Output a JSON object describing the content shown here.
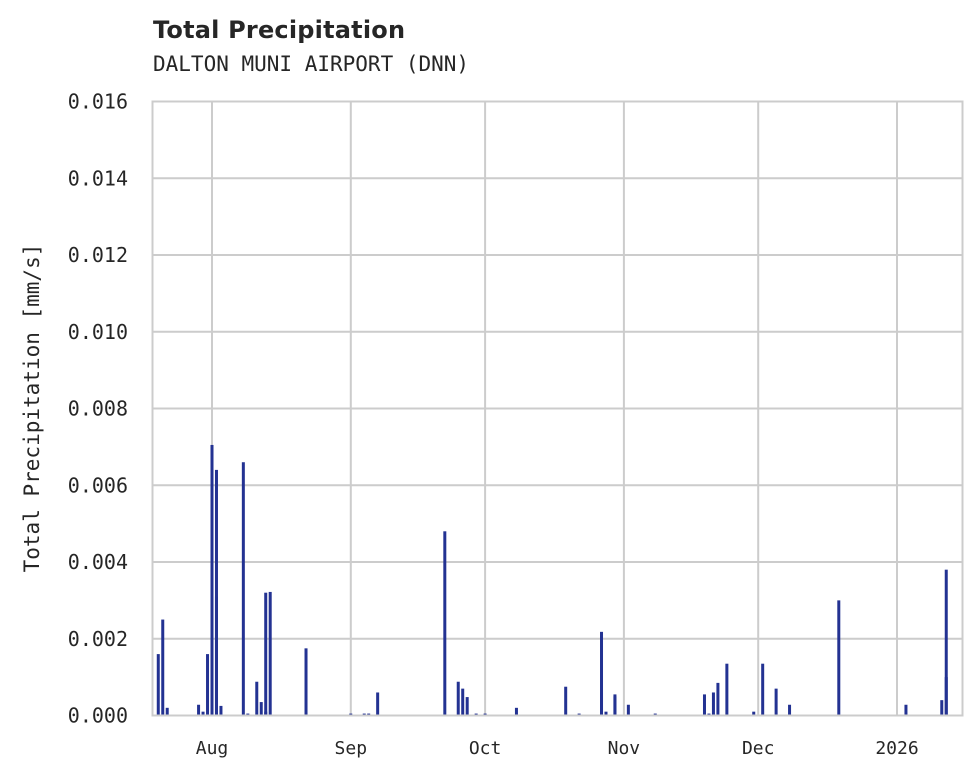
{
  "title": "Total Precipitation",
  "subtitle": "DALTON MUNI AIRPORT (DNN)",
  "colors": {
    "bar": "#233292",
    "grid": "#cccccc",
    "frame": "#cccccc",
    "text": "#262626"
  },
  "chart_data": {
    "type": "bar",
    "title": "Total Precipitation",
    "subtitle": "DALTON MUNI AIRPORT (DNN)",
    "xlabel": "",
    "ylabel": "Total Precipitation [mm/s]",
    "ylim": [
      0,
      0.016
    ],
    "yticks": [
      "0.000",
      "0.002",
      "0.004",
      "0.006",
      "0.008",
      "0.010",
      "0.012",
      "0.014",
      "0.016"
    ],
    "xticks": [
      "Aug",
      "Sep",
      "Oct",
      "Nov",
      "Dec",
      "2026"
    ],
    "xlim": [
      "2025-07-18",
      "2026-01-14"
    ],
    "grid": true,
    "legend": null,
    "series": [
      {
        "name": "Total Precipitation",
        "points": [
          {
            "x": "2025-07-20",
            "y": 0.0016
          },
          {
            "x": "2025-07-21",
            "y": 0.0025
          },
          {
            "x": "2025-07-22",
            "y": 0.0002
          },
          {
            "x": "2025-07-29",
            "y": 0.00028
          },
          {
            "x": "2025-07-30",
            "y": 0.0001
          },
          {
            "x": "2025-07-31",
            "y": 0.0016
          },
          {
            "x": "2025-08-01",
            "y": 0.00705
          },
          {
            "x": "2025-08-02",
            "y": 0.0031
          },
          {
            "x": "2025-08-02",
            "y": 0.0064
          },
          {
            "x": "2025-08-03",
            "y": 0.00025
          },
          {
            "x": "2025-08-08",
            "y": 0.0066
          },
          {
            "x": "2025-08-09",
            "y": 5e-05
          },
          {
            "x": "2025-08-11",
            "y": 0.00088
          },
          {
            "x": "2025-08-12",
            "y": 0.00035
          },
          {
            "x": "2025-08-13",
            "y": 0.0001
          },
          {
            "x": "2025-08-13",
            "y": 0.0032
          },
          {
            "x": "2025-08-14",
            "y": 0.00322
          },
          {
            "x": "2025-08-22",
            "y": 0.00175
          },
          {
            "x": "2025-09-01",
            "y": 5e-05
          },
          {
            "x": "2025-09-04",
            "y": 5e-05
          },
          {
            "x": "2025-09-05",
            "y": 5e-05
          },
          {
            "x": "2025-09-07",
            "y": 0.0006
          },
          {
            "x": "2025-09-22",
            "y": 0.0048
          },
          {
            "x": "2025-09-25",
            "y": 0.00088
          },
          {
            "x": "2025-09-26",
            "y": 0.0007
          },
          {
            "x": "2025-09-27",
            "y": 0.00048
          },
          {
            "x": "2025-09-29",
            "y": 5e-05
          },
          {
            "x": "2025-10-01",
            "y": 5e-05
          },
          {
            "x": "2025-10-08",
            "y": 0.0002
          },
          {
            "x": "2025-10-19",
            "y": 0.00075
          },
          {
            "x": "2025-10-22",
            "y": 5e-05
          },
          {
            "x": "2025-10-27",
            "y": 0.0006
          },
          {
            "x": "2025-10-27",
            "y": 0.00218
          },
          {
            "x": "2025-10-28",
            "y": 0.0001
          },
          {
            "x": "2025-10-30",
            "y": 0.0005
          },
          {
            "x": "2025-10-30",
            "y": 0.00055
          },
          {
            "x": "2025-11-02",
            "y": 0.00028
          },
          {
            "x": "2025-11-08",
            "y": 5e-05
          },
          {
            "x": "2025-11-19",
            "y": 0.00055
          },
          {
            "x": "2025-11-20",
            "y": 5e-05
          },
          {
            "x": "2025-11-21",
            "y": 0.0006
          },
          {
            "x": "2025-11-22",
            "y": 0.00085
          },
          {
            "x": "2025-11-24",
            "y": 0.00135
          },
          {
            "x": "2025-11-30",
            "y": 0.0001
          },
          {
            "x": "2025-12-02",
            "y": 0.00135
          },
          {
            "x": "2025-12-05",
            "y": 0.0007
          },
          {
            "x": "2025-12-08",
            "y": 0.00028
          },
          {
            "x": "2025-12-19",
            "y": 0.003
          },
          {
            "x": "2026-01-03",
            "y": 0.00028
          },
          {
            "x": "2026-01-11",
            "y": 0.0004
          },
          {
            "x": "2026-01-12",
            "y": 0.0038
          },
          {
            "x": "2026-01-12",
            "y": 0.001
          }
        ]
      }
    ]
  }
}
